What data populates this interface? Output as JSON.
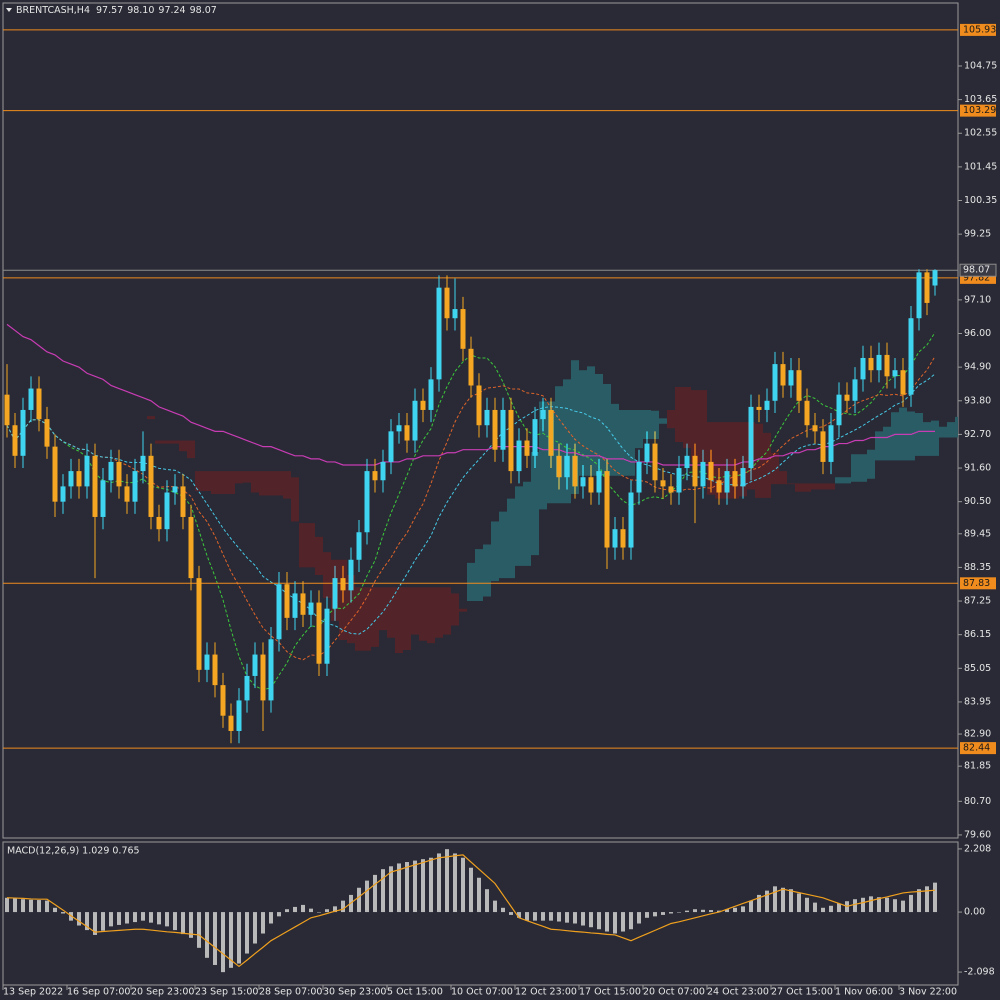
{
  "chart_data": [
    {
      "type": "candlestick",
      "title": "BRENTCASH,H4",
      "quote_labels": [
        "97.57",
        "98.10",
        "97.24",
        "98.07"
      ],
      "up_color": "#3fd4f0",
      "down_color": "#f5a623",
      "level_color": "#f08c1e",
      "price_line_color": "#8c8c8c",
      "categories": [
        "13 Sep 2022",
        null,
        null,
        null,
        null,
        null,
        null,
        null,
        "16 Sep 07:00",
        null,
        null,
        null,
        null,
        null,
        null,
        null,
        "20 Sep 23:00",
        null,
        null,
        null,
        null,
        null,
        null,
        null,
        "23 Sep 15:00",
        null,
        null,
        null,
        null,
        null,
        null,
        null,
        "28 Sep 07:00",
        null,
        null,
        null,
        null,
        null,
        null,
        null,
        "30 Sep 23:00",
        null,
        null,
        null,
        null,
        null,
        null,
        null,
        "5 Oct 15:00",
        null,
        null,
        null,
        null,
        null,
        null,
        null,
        "10 Oct 07:00",
        null,
        null,
        null,
        null,
        null,
        null,
        null,
        "12 Oct 23:00",
        null,
        null,
        null,
        null,
        null,
        null,
        null,
        "17 Oct 15:00",
        null,
        null,
        null,
        null,
        null,
        null,
        null,
        "20 Oct 07:00",
        null,
        null,
        null,
        null,
        null,
        null,
        null,
        "24 Oct 23:00",
        null,
        null,
        null,
        null,
        null,
        null,
        null,
        "27 Oct 15:00",
        null,
        null,
        null,
        null,
        null,
        null,
        null,
        "1 Nov 06:00",
        null,
        null,
        null,
        null,
        null,
        null,
        null,
        "3 Nov 22:00",
        null,
        null,
        null,
        null
      ],
      "open": [
        94.0,
        93.0,
        92.0,
        93.5,
        94.2,
        93.2,
        92.3,
        90.5,
        91.0,
        91.5,
        91.0,
        92.0,
        90.0,
        91.2,
        91.8,
        91.0,
        90.5,
        91.5,
        92.0,
        90.0,
        89.6,
        90.8,
        91.0,
        90.0,
        88.0,
        85.0,
        85.5,
        84.5,
        83.5,
        83.0,
        84.0,
        84.8,
        85.5,
        84.0,
        86.0,
        87.8,
        86.7,
        87.5,
        86.8,
        87.2,
        85.2,
        87.0,
        88.0,
        87.6,
        88.6,
        89.5,
        91.5,
        91.2,
        91.8,
        92.8,
        93.0,
        92.5,
        93.8,
        93.5,
        94.5,
        97.5,
        96.5,
        96.8,
        95.5,
        94.3,
        93.0,
        93.5,
        92.2,
        93.5,
        91.5,
        92.5,
        92.0,
        93.2,
        93.5,
        92.0,
        91.3,
        92.0,
        91.0,
        91.3,
        90.8,
        91.5,
        89.0,
        89.6,
        89.0,
        90.8,
        91.8,
        92.4,
        91.2,
        91.0,
        90.8,
        91.6,
        92.0,
        91.0,
        91.8,
        91.2,
        90.8,
        91.5,
        91.0,
        91.6,
        93.6,
        93.5,
        93.8,
        95.0,
        94.3,
        94.8,
        93.8,
        93.0,
        92.8,
        91.8,
        93.0,
        94.0,
        93.8,
        94.5,
        95.2,
        94.8,
        95.3,
        94.6,
        94.8,
        94.0,
        96.5,
        98.0,
        97.57
      ],
      "high": [
        95.0,
        93.4,
        93.9,
        94.6,
        94.6,
        93.6,
        92.7,
        91.4,
        91.9,
        91.9,
        92.4,
        92.4,
        91.6,
        92.2,
        92.2,
        91.4,
        91.9,
        92.8,
        92.4,
        90.4,
        91.2,
        91.4,
        91.4,
        90.4,
        88.4,
        85.9,
        85.9,
        84.9,
        83.9,
        84.4,
        85.2,
        85.9,
        85.9,
        86.4,
        88.2,
        88.2,
        87.9,
        87.9,
        87.6,
        87.6,
        87.4,
        88.4,
        88.4,
        89.0,
        89.9,
        91.9,
        91.9,
        92.2,
        93.2,
        93.4,
        93.4,
        94.2,
        94.2,
        94.9,
        97.9,
        97.9,
        97.8,
        97.2,
        95.9,
        94.7,
        93.9,
        93.9,
        93.9,
        93.9,
        92.9,
        92.9,
        93.6,
        93.9,
        93.9,
        92.4,
        92.4,
        92.4,
        91.7,
        91.7,
        91.9,
        91.9,
        90.0,
        90.0,
        91.2,
        92.2,
        92.8,
        92.8,
        91.6,
        91.4,
        92.0,
        92.4,
        92.4,
        92.2,
        92.2,
        91.6,
        91.9,
        91.9,
        92.0,
        94.0,
        94.0,
        94.2,
        95.4,
        95.4,
        95.2,
        95.2,
        94.2,
        93.4,
        93.2,
        93.4,
        94.4,
        94.4,
        94.9,
        95.6,
        95.6,
        95.7,
        95.7,
        95.2,
        95.2,
        96.9,
        98.1,
        98.1,
        98.1
      ],
      "low": [
        92.6,
        91.6,
        91.6,
        93.1,
        92.8,
        91.9,
        90.0,
        90.1,
        90.6,
        90.6,
        90.6,
        88.0,
        89.6,
        90.8,
        90.6,
        90.1,
        90.1,
        91.1,
        89.6,
        89.2,
        89.2,
        90.4,
        89.6,
        87.6,
        84.6,
        84.6,
        84.1,
        83.1,
        82.6,
        82.6,
        83.6,
        84.4,
        83.0,
        83.6,
        85.6,
        86.3,
        86.3,
        86.4,
        86.4,
        84.8,
        84.8,
        86.6,
        87.2,
        87.2,
        88.2,
        89.1,
        90.8,
        90.8,
        91.4,
        92.4,
        92.1,
        92.1,
        93.1,
        93.1,
        94.1,
        96.1,
        96.1,
        95.1,
        93.9,
        92.6,
        92.6,
        91.8,
        91.8,
        91.1,
        91.1,
        91.6,
        91.6,
        92.8,
        91.6,
        90.9,
        90.9,
        90.6,
        90.6,
        90.4,
        90.4,
        88.3,
        88.6,
        88.6,
        88.6,
        90.4,
        91.4,
        90.8,
        90.6,
        90.4,
        90.4,
        91.2,
        89.8,
        90.6,
        90.8,
        90.4,
        90.4,
        90.6,
        90.6,
        91.2,
        93.1,
        93.1,
        93.4,
        93.9,
        93.9,
        93.4,
        92.6,
        92.4,
        91.4,
        91.4,
        92.6,
        93.4,
        93.4,
        94.1,
        94.4,
        94.4,
        94.2,
        94.2,
        93.6,
        93.6,
        96.1,
        96.6,
        97.24
      ],
      "close": [
        93.0,
        92.0,
        93.5,
        94.2,
        93.2,
        92.3,
        90.5,
        91.0,
        91.5,
        91.0,
        92.0,
        90.0,
        91.2,
        91.8,
        91.0,
        90.5,
        91.5,
        92.0,
        90.0,
        89.6,
        90.8,
        91.0,
        90.0,
        88.0,
        85.0,
        85.5,
        84.5,
        83.5,
        83.0,
        84.0,
        84.8,
        85.5,
        84.0,
        86.0,
        87.8,
        86.7,
        87.5,
        86.8,
        87.2,
        85.2,
        87.0,
        88.0,
        87.6,
        88.6,
        89.5,
        91.5,
        91.2,
        91.8,
        92.8,
        93.0,
        92.5,
        93.8,
        93.5,
        94.5,
        97.5,
        96.5,
        96.8,
        95.5,
        94.3,
        93.0,
        93.5,
        92.2,
        93.5,
        91.5,
        92.5,
        92.0,
        93.2,
        93.5,
        92.0,
        91.3,
        92.0,
        91.0,
        91.3,
        90.8,
        91.5,
        89.0,
        89.6,
        89.0,
        90.8,
        91.8,
        92.4,
        91.2,
        91.0,
        90.8,
        91.6,
        92.0,
        91.0,
        91.8,
        91.2,
        90.8,
        91.5,
        91.0,
        91.6,
        93.6,
        93.5,
        93.8,
        95.0,
        94.3,
        94.8,
        93.8,
        93.0,
        92.8,
        91.8,
        93.0,
        94.0,
        93.8,
        94.5,
        95.2,
        94.8,
        95.3,
        94.6,
        94.8,
        94.0,
        96.5,
        98.0,
        97.0,
        98.07
      ],
      "ma": {
        "color": "#c83cb4",
        "values": [
          96.3,
          96.1,
          95.9,
          95.8,
          95.6,
          95.4,
          95.3,
          95.1,
          95.0,
          94.9,
          94.7,
          94.6,
          94.5,
          94.3,
          94.2,
          94.1,
          94.0,
          93.9,
          93.8,
          93.6,
          93.5,
          93.4,
          93.3,
          93.1,
          93.0,
          92.9,
          92.8,
          92.8,
          92.7,
          92.6,
          92.5,
          92.4,
          92.3,
          92.3,
          92.2,
          92.1,
          92.0,
          92.0,
          91.9,
          91.9,
          91.8,
          91.8,
          91.7,
          91.7,
          91.7,
          91.7,
          91.7,
          91.8,
          91.8,
          91.8,
          91.9,
          91.9,
          92.0,
          92.0,
          92.0,
          92.1,
          92.1,
          92.2,
          92.2,
          92.2,
          92.2,
          92.3,
          92.3,
          92.3,
          92.3,
          92.3,
          92.3,
          92.2,
          92.2,
          92.2,
          92.1,
          92.1,
          92.0,
          92.0,
          92.0,
          91.9,
          91.9,
          91.9,
          91.8,
          91.8,
          91.8,
          91.8,
          91.7,
          91.7,
          91.7,
          91.7,
          91.7,
          91.7,
          91.7,
          91.7,
          91.7,
          91.7,
          91.8,
          91.8,
          91.9,
          91.9,
          92.0,
          92.0,
          92.1,
          92.1,
          92.2,
          92.2,
          92.3,
          92.3,
          92.4,
          92.4,
          92.5,
          92.5,
          92.6,
          92.6,
          92.6,
          92.7,
          92.7,
          92.7,
          92.8,
          92.8,
          92.8
        ]
      },
      "levels": [
        105.93,
        103.29,
        97.82,
        87.83,
        82.44
      ],
      "ylim": [
        79.5,
        106.81
      ],
      "yticks": [
        104.75,
        103.65,
        102.55,
        101.45,
        100.35,
        99.25,
        {
          "value": 97.1,
          "label": "97.10"
        },
        {
          "value": 96,
          "label": "96.00"
        },
        {
          "value": 94.9,
          "label": "94.90"
        },
        {
          "value": 93.8,
          "label": "93.80"
        },
        {
          "value": 92.7,
          "label": "92.70"
        },
        {
          "value": 91.6,
          "label": "91.60"
        },
        {
          "value": 90.5,
          "label": "90.50"
        },
        89.45,
        88.35,
        87.25,
        86.15,
        85.05,
        83.95,
        {
          "value": 82.9,
          "label": "82.90"
        },
        81.85,
        {
          "value": 80.7,
          "label": "80.70"
        },
        {
          "value": 79.6,
          "label": "79.60"
        }
      ]
    },
    {
      "type": "macd",
      "title": "MACD(12,26,9) 1.029 0.765",
      "histogram": {
        "color": "#b9b9b9",
        "values": [
          0.5,
          0.48,
          0.45,
          0.43,
          0.42,
          0.4,
          0.15,
          -0.05,
          -0.3,
          -0.47,
          -0.63,
          -0.8,
          -0.65,
          -0.5,
          -0.45,
          -0.4,
          -0.35,
          -0.3,
          -0.37,
          -0.43,
          -0.5,
          -0.63,
          -0.77,
          -0.9,
          -1.25,
          -1.6,
          -1.85,
          -2.1,
          -1.95,
          -1.8,
          -1.45,
          -1.1,
          -0.75,
          -0.4,
          -0.15,
          0.1,
          0.18,
          0.25,
          0.12,
          0.0,
          0.1,
          0.2,
          0.4,
          0.6,
          0.85,
          1.1,
          1.3,
          1.5,
          1.6,
          1.7,
          1.75,
          1.8,
          1.85,
          1.9,
          2.05,
          2.2,
          2.05,
          1.9,
          1.55,
          1.2,
          0.8,
          0.4,
          0.15,
          -0.1,
          -0.2,
          -0.3,
          -0.3,
          -0.3,
          -0.3,
          -0.33,
          -0.37,
          -0.4,
          -0.47,
          -0.53,
          -0.6,
          -0.68,
          -0.75,
          -0.68,
          -0.6,
          -0.4,
          -0.2,
          -0.15,
          -0.1,
          -0.05,
          0.0,
          0.05,
          0.1,
          0.08,
          0.07,
          0.05,
          0.1,
          0.15,
          0.2,
          0.4,
          0.6,
          0.75,
          0.9,
          0.85,
          0.8,
          0.65,
          0.5,
          0.33,
          0.15,
          0.22,
          0.3,
          0.38,
          0.45,
          0.5,
          0.55,
          0.52,
          0.5,
          0.45,
          0.4,
          0.6,
          0.8,
          0.9,
          1.029
        ]
      },
      "signal": {
        "color": "#f0a01e",
        "values": [
          0.5,
          0.49,
          0.48,
          0.46,
          0.45,
          0.45,
          0.26,
          0.07,
          -0.13,
          -0.32,
          -0.51,
          -0.7,
          -0.68,
          -0.66,
          -0.64,
          -0.62,
          -0.6,
          -0.6,
          -0.63,
          -0.66,
          -0.69,
          -0.71,
          -0.74,
          -0.77,
          -0.8,
          -1.02,
          -1.24,
          -1.46,
          -1.68,
          -1.9,
          -1.68,
          -1.45,
          -1.23,
          -1.0,
          -0.84,
          -0.68,
          -0.52,
          -0.36,
          -0.2,
          -0.13,
          -0.05,
          0.03,
          0.1,
          0.32,
          0.53,
          0.75,
          0.97,
          1.18,
          1.4,
          1.48,
          1.57,
          1.65,
          1.73,
          1.82,
          1.9,
          1.93,
          1.97,
          2.0,
          1.75,
          1.5,
          1.25,
          1.0,
          0.6,
          0.2,
          -0.2,
          -0.3,
          -0.4,
          -0.5,
          -0.6,
          -0.62,
          -0.65,
          -0.68,
          -0.7,
          -0.73,
          -0.75,
          -0.78,
          -0.8,
          -0.9,
          -1.0,
          -0.88,
          -0.76,
          -0.64,
          -0.52,
          -0.4,
          -0.34,
          -0.27,
          -0.2,
          -0.13,
          -0.06,
          0.0,
          0.1,
          0.2,
          0.3,
          0.4,
          0.5,
          0.6,
          0.7,
          0.8,
          0.74,
          0.68,
          0.62,
          0.56,
          0.5,
          0.4,
          0.3,
          0.2,
          0.27,
          0.33,
          0.4,
          0.47,
          0.53,
          0.6,
          0.67,
          0.7,
          0.72,
          0.74,
          0.765
        ]
      },
      "ylim": [
        -2.55,
        2.45
      ],
      "yticks": [
        2.208,
        {
          "value": 0,
          "label": "0.00"
        },
        -2.098
      ]
    }
  ]
}
